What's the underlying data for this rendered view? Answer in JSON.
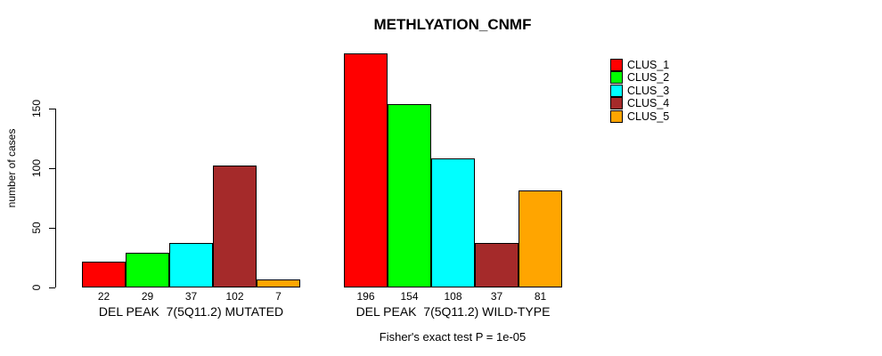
{
  "chart_data": {
    "type": "bar",
    "title": "METHLYATION_CNMF",
    "ylabel": "number of cases",
    "yticks": [
      0,
      50,
      100,
      150
    ],
    "ylim": [
      0,
      150
    ],
    "grid": false,
    "legend_position": "right",
    "categories": [
      "DEL PEAK  7(5Q11.2) MUTATED",
      "DEL PEAK  7(5Q11.2) WILD-TYPE"
    ],
    "series": [
      {
        "name": "CLUS_1",
        "color": "#FF0000",
        "values": [
          22,
          196
        ]
      },
      {
        "name": "CLUS_2",
        "color": "#00FF00",
        "values": [
          29,
          154
        ]
      },
      {
        "name": "CLUS_3",
        "color": "#00FFFF",
        "values": [
          37,
          108
        ]
      },
      {
        "name": "CLUS_4",
        "color": "#A52A2A",
        "values": [
          102,
          37
        ]
      },
      {
        "name": "CLUS_5",
        "color": "#FFA500",
        "values": [
          7,
          81
        ]
      }
    ],
    "bar_value_labels_shown": true,
    "footnote": "Fisher's exact test P = 1e-05"
  }
}
